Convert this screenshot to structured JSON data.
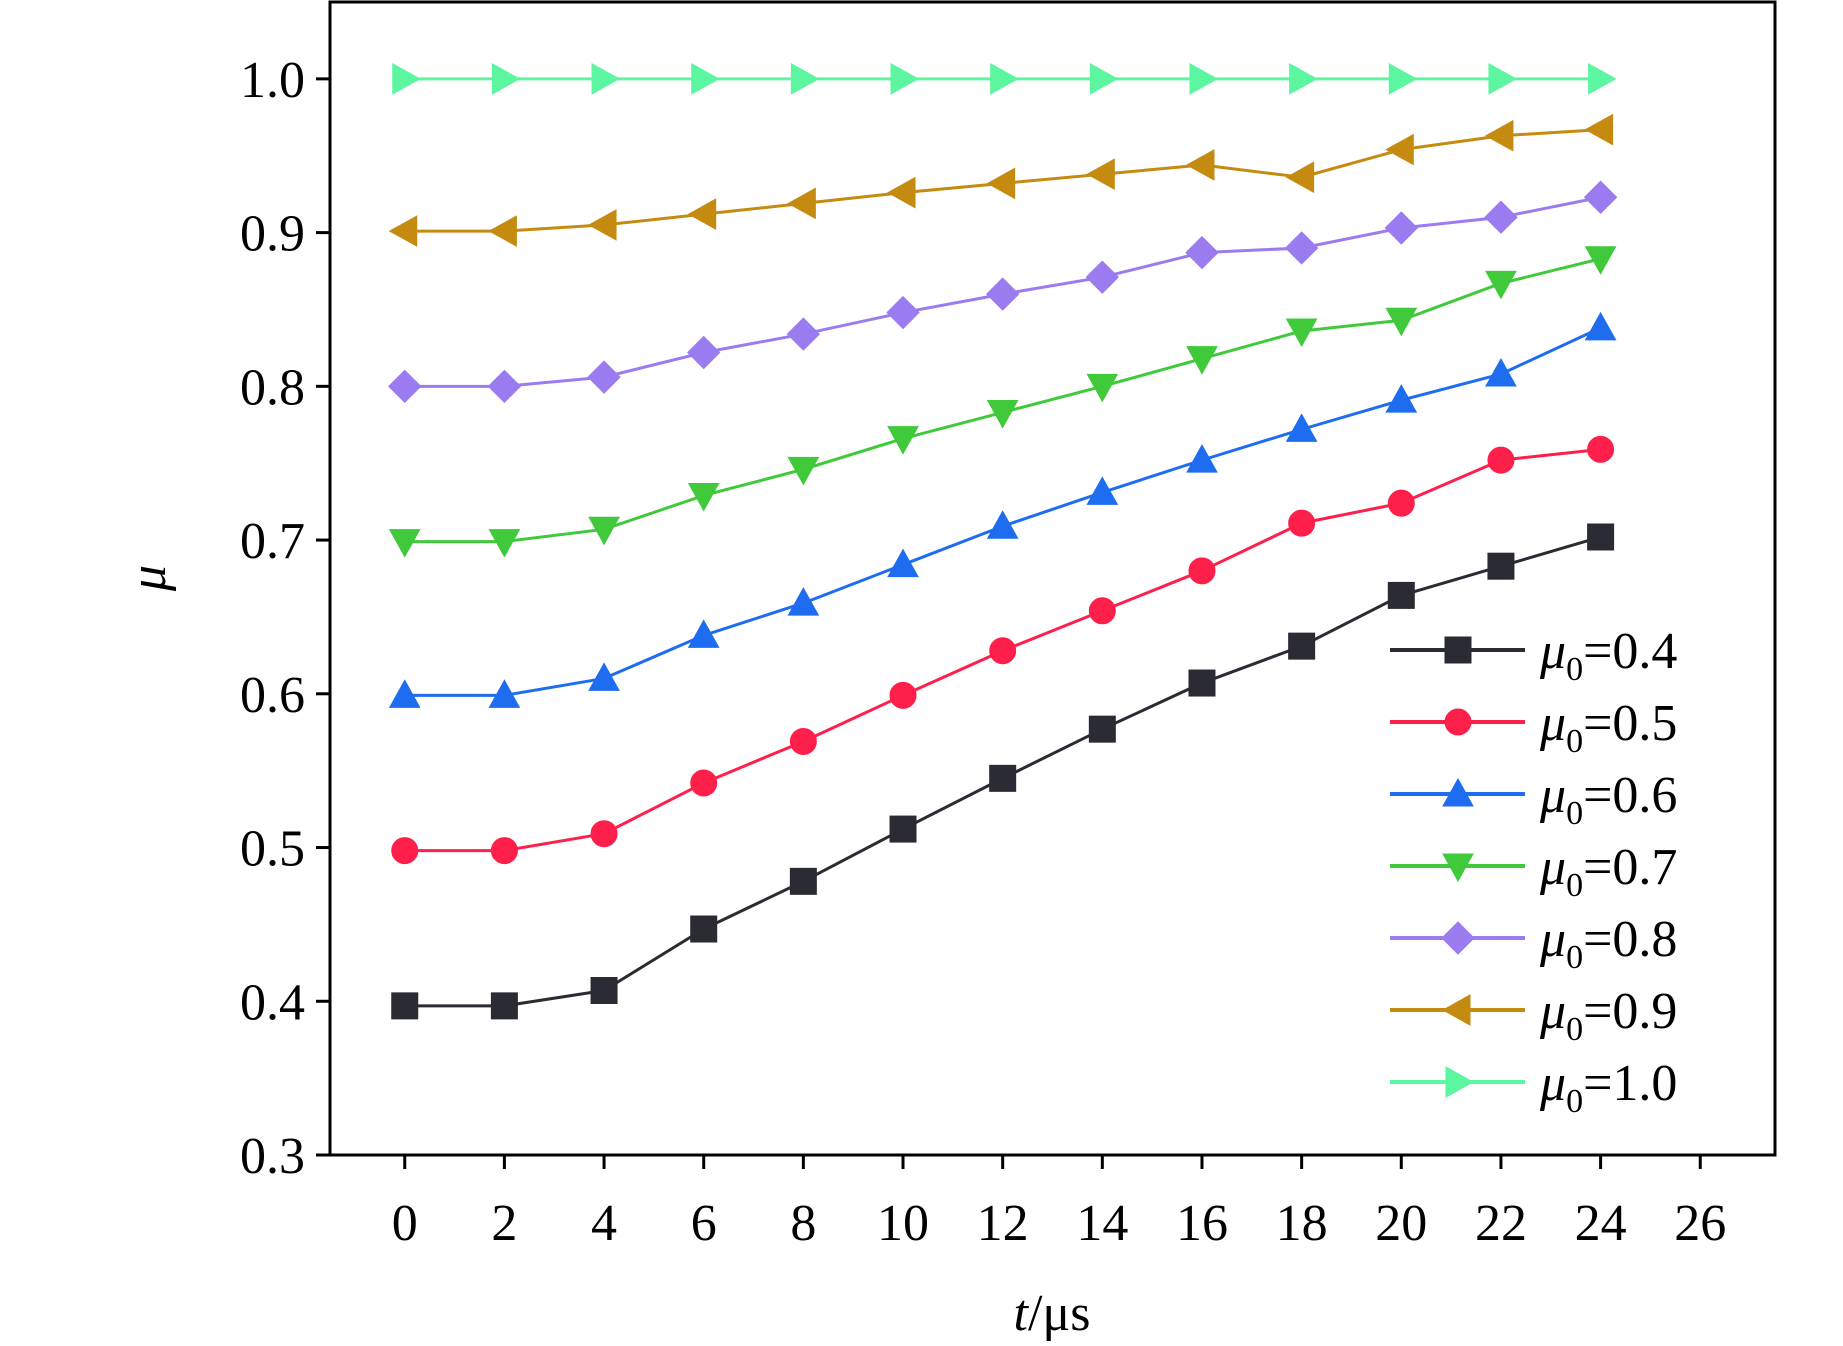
{
  "chart_data": {
    "type": "line",
    "title": "",
    "xlabel": "t/μs",
    "xlabel_parts": {
      "var": "t",
      "unit": "/μs"
    },
    "ylabel": "μ",
    "xlim": [
      -1.5,
      27.5
    ],
    "ylim": [
      0.3,
      1.05
    ],
    "xticks": [
      0,
      2,
      4,
      6,
      8,
      10,
      12,
      14,
      16,
      18,
      20,
      22,
      24,
      26
    ],
    "xtick_labels": [
      "0",
      "2",
      "4",
      "6",
      "8",
      "10",
      "12",
      "14",
      "16",
      "18",
      "20",
      "22",
      "24",
      "26"
    ],
    "yticks": [
      0.3,
      0.4,
      0.5,
      0.6,
      0.7,
      0.8,
      0.9,
      1.0
    ],
    "ytick_labels": [
      "0.3",
      "0.4",
      "0.5",
      "0.6",
      "0.7",
      "0.8",
      "0.9",
      "1.0"
    ],
    "grid": false,
    "legend_position": "bottom-right",
    "x": [
      0,
      2,
      4,
      6,
      8,
      10,
      12,
      14,
      16,
      18,
      20,
      22,
      24
    ],
    "series": [
      {
        "name": "μ0=0.4",
        "label_sym": "μ",
        "label_sub": "0",
        "label_val": "=0.4",
        "color": "#2b2b33",
        "marker": "square",
        "values": [
          0.397,
          0.397,
          0.407,
          0.447,
          0.478,
          0.512,
          0.545,
          0.577,
          0.607,
          0.631,
          0.664,
          0.683,
          0.702
        ]
      },
      {
        "name": "μ0=0.5",
        "label_sym": "μ",
        "label_sub": "0",
        "label_val": "=0.5",
        "color": "#ff1f4b",
        "marker": "circle",
        "values": [
          0.498,
          0.498,
          0.509,
          0.542,
          0.569,
          0.599,
          0.628,
          0.654,
          0.68,
          0.711,
          0.724,
          0.752,
          0.759
        ]
      },
      {
        "name": "μ0=0.6",
        "label_sym": "μ",
        "label_sub": "0",
        "label_val": "=0.6",
        "color": "#1e6cf0",
        "marker": "triangle-up",
        "values": [
          0.599,
          0.599,
          0.61,
          0.638,
          0.659,
          0.684,
          0.709,
          0.731,
          0.752,
          0.772,
          0.791,
          0.808,
          0.838
        ]
      },
      {
        "name": "μ0=0.7",
        "label_sym": "μ",
        "label_sub": "0",
        "label_val": "=0.7",
        "color": "#3fc93b",
        "marker": "triangle-down",
        "values": [
          0.699,
          0.699,
          0.707,
          0.729,
          0.746,
          0.766,
          0.783,
          0.8,
          0.818,
          0.836,
          0.843,
          0.867,
          0.883
        ]
      },
      {
        "name": "μ0=0.8",
        "label_sym": "μ",
        "label_sub": "0",
        "label_val": "=0.8",
        "color": "#9b7cf0",
        "marker": "diamond",
        "values": [
          0.8,
          0.8,
          0.806,
          0.822,
          0.834,
          0.848,
          0.86,
          0.871,
          0.887,
          0.89,
          0.903,
          0.91,
          0.923
        ]
      },
      {
        "name": "μ0=0.9",
        "label_sym": "μ",
        "label_sub": "0",
        "label_val": "=0.9",
        "color": "#c58a10",
        "marker": "triangle-left",
        "values": [
          0.901,
          0.901,
          0.905,
          0.912,
          0.919,
          0.926,
          0.932,
          0.938,
          0.944,
          0.936,
          0.954,
          0.963,
          0.967
        ]
      },
      {
        "name": "μ0=1.0",
        "label_sym": "μ",
        "label_sub": "0",
        "label_val": "=1.0",
        "color": "#5cf5a0",
        "marker": "triangle-right",
        "values": [
          1.0,
          1.0,
          1.0,
          1.0,
          1.0,
          1.0,
          1.0,
          1.0,
          1.0,
          1.0,
          1.0,
          1.0,
          1.0
        ]
      }
    ]
  }
}
